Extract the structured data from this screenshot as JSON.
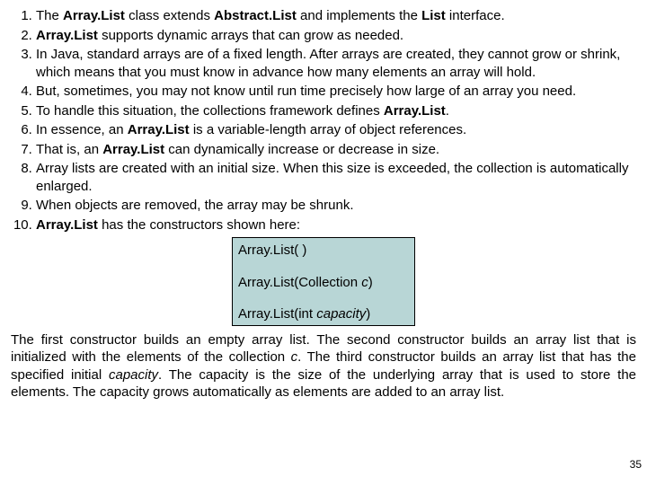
{
  "list": {
    "items": [
      {
        "num": "1.",
        "html": "The <b>Array.List</b> class extends <b>Abstract.List</b> and implements the <b>List</b> interface."
      },
      {
        "num": "2.",
        "html": "<b>Array.List</b> supports dynamic arrays that can grow as needed."
      },
      {
        "num": "3.",
        "html": "In Java, standard arrays are of a fixed length. After arrays are created, they cannot grow or shrink, which means that you must know in advance how many elements an array will hold."
      },
      {
        "num": "4.",
        "html": "But, sometimes, you may not know until run time precisely how large of an array you need."
      },
      {
        "num": "5.",
        "html": "To handle this situation, the collections framework defines <b>Array.List</b>."
      },
      {
        "num": "6.",
        "html": "In essence, an <b>Array.List</b> is a variable-length array of object references."
      },
      {
        "num": "7.",
        "html": "That is, an <b>Array.List</b> can dynamically increase or decrease in size."
      },
      {
        "num": "8.",
        "html": "Array lists are created with an initial size. When this size is exceeded, the collection is automatically enlarged."
      },
      {
        "num": "9.",
        "html": "When objects are removed, the array may be shrunk."
      },
      {
        "num": "10.",
        "html": "<b>Array.List</b> has the constructors shown here:"
      }
    ]
  },
  "constructors": {
    "c1": "Array.List( )",
    "c2_pre": "Array.List(Collection ",
    "c2_var": "c",
    "c2_post": ")",
    "c3_pre": "Array.List(int ",
    "c3_var": "capacity",
    "c3_post": ")"
  },
  "paragraph": {
    "text_html": "The first constructor builds an empty array list. The second constructor builds an array list that is initialized with the elements of the collection <i>c</i>. The third constructor builds an array list that has the specified initial <i>capacity</i>. The capacity is the size of the underlying array that is used to store the elements. The capacity grows automatically as elements are added to an array list."
  },
  "pagenum": "35",
  "box_style": {
    "background": "#b8d6d6",
    "border": "#000000"
  }
}
